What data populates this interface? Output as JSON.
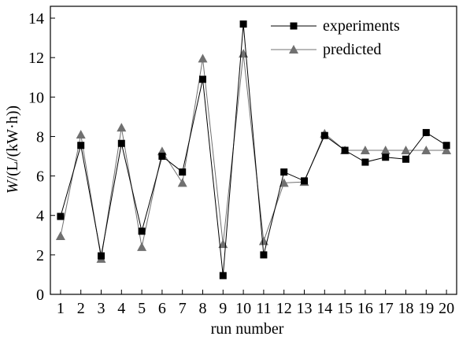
{
  "chart_data": {
    "type": "line",
    "xlabel": "run number",
    "ylabel_italic": "W",
    "ylabel_units": "/(L/(kW·h))",
    "x": [
      1,
      2,
      3,
      4,
      5,
      6,
      7,
      8,
      9,
      10,
      11,
      12,
      13,
      14,
      15,
      16,
      17,
      18,
      19,
      20
    ],
    "x_tick_labels": [
      "1",
      "2",
      "3",
      "4",
      "5",
      "6",
      "7",
      "8",
      "9",
      "10",
      "11",
      "12",
      "13",
      "14",
      "15",
      "16",
      "17",
      "18",
      "19",
      "20"
    ],
    "y_tick_labels": [
      "0",
      "2",
      "4",
      "6",
      "8",
      "10",
      "12",
      "14"
    ],
    "y_ticks": [
      0,
      2,
      4,
      6,
      8,
      10,
      12,
      14
    ],
    "xlim": [
      0.5,
      20.5
    ],
    "ylim": [
      0,
      14.6
    ],
    "grid": false,
    "legend_position": "top-right",
    "series": [
      {
        "name": "experiments",
        "marker": "square",
        "color": "#000000",
        "values": [
          3.95,
          7.55,
          1.95,
          7.65,
          3.2,
          7.0,
          6.2,
          10.9,
          0.95,
          13.7,
          2.0,
          6.2,
          5.75,
          8.05,
          7.3,
          6.7,
          6.95,
          6.85,
          8.2,
          7.55
        ]
      },
      {
        "name": "predicted",
        "marker": "triangle",
        "color": "#707070",
        "values": [
          2.95,
          8.1,
          1.8,
          8.45,
          2.4,
          7.25,
          5.65,
          11.95,
          2.55,
          12.2,
          2.7,
          5.65,
          5.7,
          8.15,
          7.3,
          7.3,
          7.3,
          7.3,
          7.3,
          7.3
        ]
      }
    ]
  }
}
